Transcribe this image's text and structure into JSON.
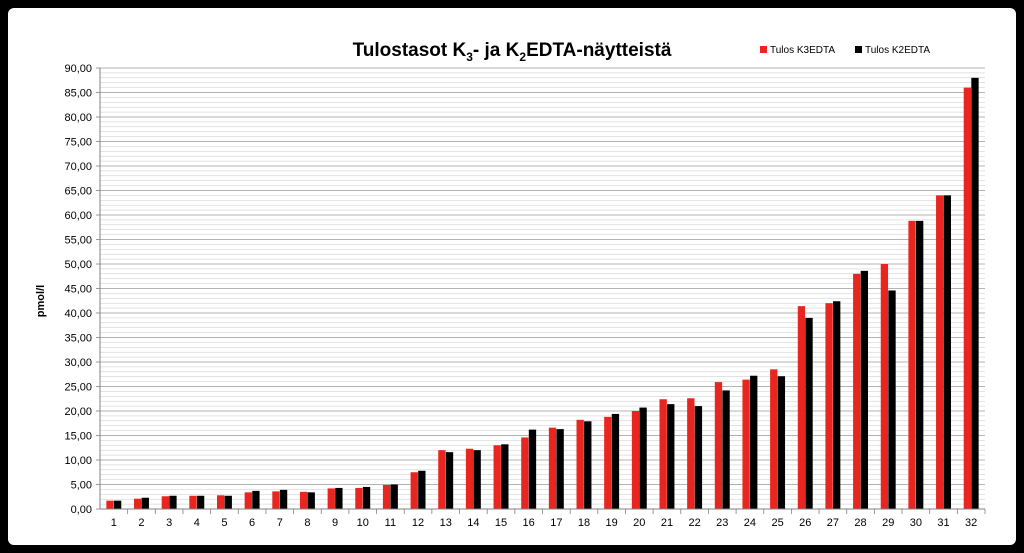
{
  "chart_data": {
    "type": "bar",
    "title": {
      "p1": "Tulostasot K",
      "sub1": "3",
      "p2": "- ja K",
      "sub2": "2",
      "p3": "EDTA-näytteistä"
    },
    "xlabel": "",
    "ylabel": "pmol/l",
    "ylim": [
      0,
      90
    ],
    "ytick_step": 5,
    "ytick_labels": [
      "0,00",
      "5,00",
      "10,00",
      "15,00",
      "20,00",
      "25,00",
      "30,00",
      "35,00",
      "40,00",
      "45,00",
      "50,00",
      "55,00",
      "60,00",
      "65,00",
      "70,00",
      "75,00",
      "80,00",
      "85,00",
      "90,00"
    ],
    "grid": true,
    "legend_position": "top-right",
    "categories": [
      "1",
      "2",
      "3",
      "4",
      "5",
      "6",
      "7",
      "8",
      "9",
      "10",
      "11",
      "12",
      "13",
      "14",
      "15",
      "16",
      "17",
      "18",
      "19",
      "20",
      "21",
      "22",
      "23",
      "24",
      "25",
      "26",
      "27",
      "28",
      "29",
      "30",
      "31",
      "32"
    ],
    "series": [
      {
        "name": "Tulos K3EDTA",
        "color": "#e8251f",
        "values": [
          1.7,
          2.1,
          2.6,
          2.7,
          2.8,
          3.4,
          3.6,
          3.5,
          4.2,
          4.3,
          4.9,
          7.5,
          12.0,
          12.3,
          13.0,
          14.6,
          16.6,
          18.2,
          18.8,
          20.0,
          22.4,
          22.6,
          25.9,
          26.4,
          28.5,
          41.4,
          42.0,
          48.0,
          50.0,
          58.8,
          64.0,
          86.0
        ]
      },
      {
        "name": "Tulos K2EDTA",
        "color": "#000000",
        "values": [
          1.7,
          2.3,
          2.7,
          2.7,
          2.7,
          3.7,
          3.9,
          3.4,
          4.3,
          4.5,
          5.0,
          7.8,
          11.6,
          12.0,
          13.2,
          16.2,
          16.3,
          17.9,
          19.4,
          20.7,
          21.4,
          21.0,
          24.2,
          27.2,
          27.1,
          39.0,
          42.4,
          48.6,
          44.6,
          58.8,
          64.0,
          88.0
        ]
      }
    ]
  }
}
